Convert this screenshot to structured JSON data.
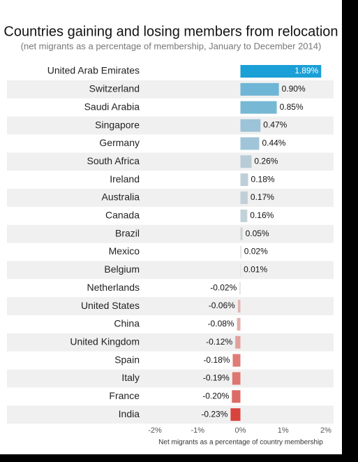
{
  "chart_data": {
    "type": "hbar",
    "title": "Countries gaining and losing members from relocation",
    "subtitle": "(net migrants as a percentage of membership, January to December 2014)",
    "x_label": "Net migrants as a percentage of country membership",
    "categories": [
      "United Arab Emirates",
      "Switzerland",
      "Saudi Arabia",
      "Singapore",
      "Germany",
      "South Africa",
      "Ireland",
      "Australia",
      "Canada",
      "Brazil",
      "Mexico",
      "Belgium",
      "Netherlands",
      "United States",
      "China",
      "United Kingdom",
      "Spain",
      "Italy",
      "France",
      "India"
    ],
    "values": [
      1.89,
      0.9,
      0.85,
      0.47,
      0.44,
      0.26,
      0.18,
      0.17,
      0.16,
      0.05,
      0.02,
      0.01,
      -0.02,
      -0.06,
      -0.08,
      -0.12,
      -0.18,
      -0.19,
      -0.2,
      -0.23
    ],
    "value_labels": [
      "1.89%",
      "0.90%",
      "0.85%",
      "0.47%",
      "0.44%",
      "0.26%",
      "0.18%",
      "0.17%",
      "0.16%",
      "0.05%",
      "0.02%",
      "0.01%",
      "-0.02%",
      "-0.06%",
      "-0.08%",
      "-0.12%",
      "-0.18%",
      "-0.19%",
      "-0.20%",
      "-0.23%"
    ],
    "colors": [
      "#1a9fd6",
      "#6fb5d5",
      "#77b8d5",
      "#9cc3d7",
      "#a0c5d8",
      "#b7ccd7",
      "#bfcfd8",
      "#c1d0d8",
      "#c3d1d8",
      "#cfd3d5",
      "#d3d3d3",
      "#d5d5d5",
      "#ddd0d0",
      "#e2b6b4",
      "#e2aeab",
      "#e2a09d",
      "#df7c77",
      "#de7570",
      "#dc6b66",
      "#d9433d"
    ],
    "xlim": [
      -2,
      2
    ],
    "xticks": [
      {
        "value": -2,
        "label": "-2%"
      },
      {
        "value": -1,
        "label": "-1%"
      },
      {
        "value": 0,
        "label": "0%"
      },
      {
        "value": 1,
        "label": "1%"
      },
      {
        "value": 2,
        "label": "2%"
      }
    ],
    "stripes": true
  }
}
